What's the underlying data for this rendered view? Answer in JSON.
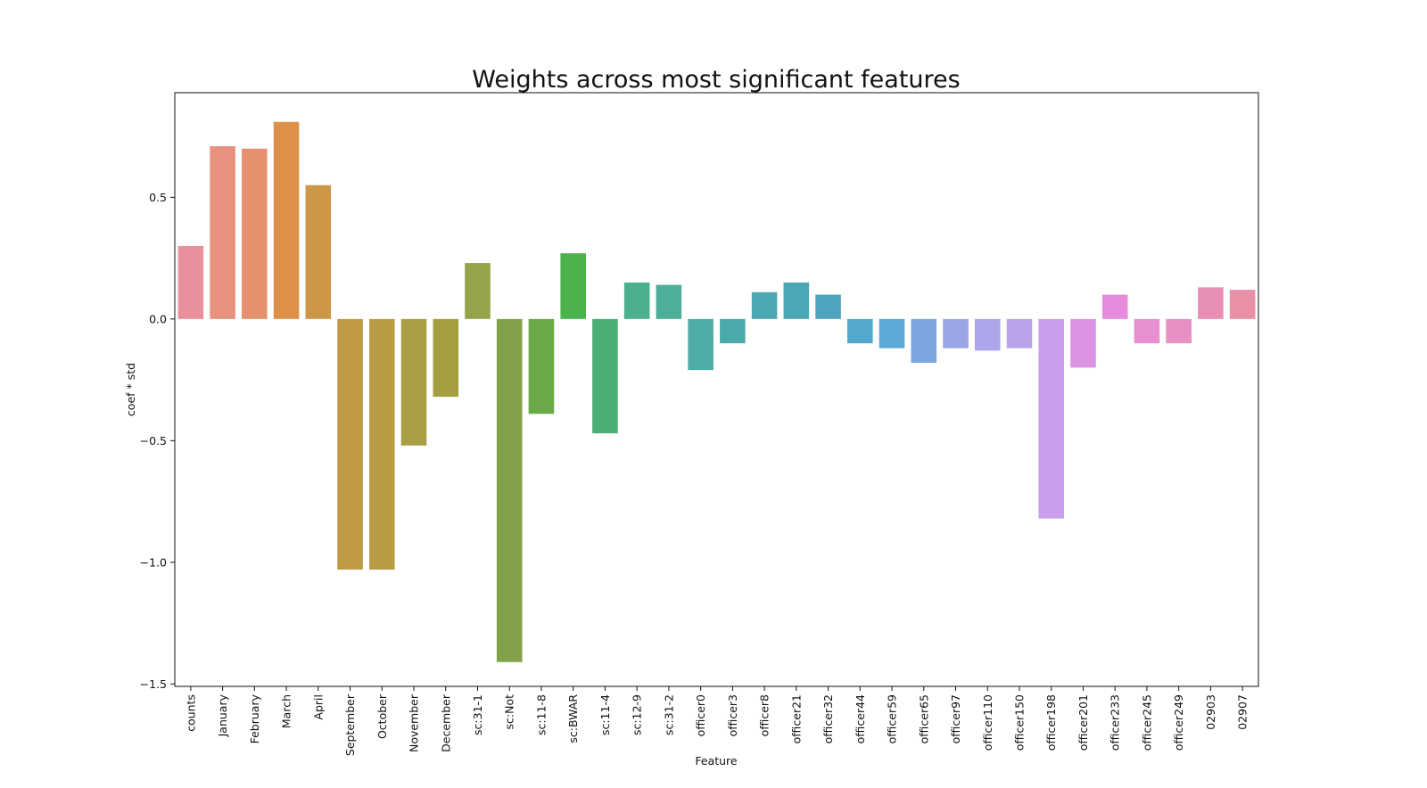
{
  "chart_data": {
    "type": "bar",
    "title": "Weights across most significant features",
    "xlabel": "Feature",
    "ylabel": "coef * std",
    "ylim": [
      -1.51,
      0.93
    ],
    "yticks": [
      0.5,
      0.0,
      -0.5,
      -1.0,
      -1.5
    ],
    "ytick_labels": [
      "0.5",
      "0.0",
      "−0.5",
      "−1.0",
      "−1.5"
    ],
    "grid": false,
    "legend": "none",
    "categories": [
      "counts",
      "January",
      "February",
      "March",
      "April",
      "September",
      "October",
      "November",
      "December",
      "sc:31-1",
      "sc:Not",
      "sc:11-8",
      "sc:BWAR",
      "sc:11-4",
      "sc:12-9",
      "sc:31-2",
      "officer0",
      "officer3",
      "officer8",
      "officer21",
      "officer32",
      "officer44",
      "officer59",
      "officer65",
      "officer97",
      "officer110",
      "officer150",
      "officer198",
      "officer201",
      "officer233",
      "officer245",
      "officer249",
      "02903",
      "02907"
    ],
    "values": [
      0.3,
      0.71,
      0.7,
      0.81,
      0.55,
      -1.03,
      -1.03,
      -0.52,
      -0.32,
      0.23,
      -1.41,
      -0.39,
      0.27,
      -0.47,
      0.15,
      0.14,
      -0.21,
      -0.1,
      0.11,
      0.15,
      0.1,
      -0.1,
      -0.12,
      -0.18,
      -0.12,
      -0.13,
      -0.12,
      -0.82,
      -0.2,
      0.1,
      -0.1,
      -0.1,
      0.13,
      0.12
    ],
    "colors": [
      "#e8919d",
      "#e8917f",
      "#e5916f",
      "#de9048",
      "#cc9746",
      "#be9a47",
      "#b99b46",
      "#a89e44",
      "#a4a040",
      "#94a44a",
      "#82a249",
      "#6aaa48",
      "#4cb24e",
      "#4cad74",
      "#4caf8d",
      "#4daf99",
      "#4eaba6",
      "#4ca9aa",
      "#4da7b2",
      "#4da6b6",
      "#4ea4bd",
      "#54a8cc",
      "#5aa9d9",
      "#7ba6e0",
      "#9aa6e6",
      "#aca5ea",
      "#baa3e8",
      "#c99eea",
      "#dc93e4",
      "#e78cdc",
      "#e78fd0",
      "#e88fc4",
      "#e88fb5",
      "#e890a6"
    ]
  }
}
